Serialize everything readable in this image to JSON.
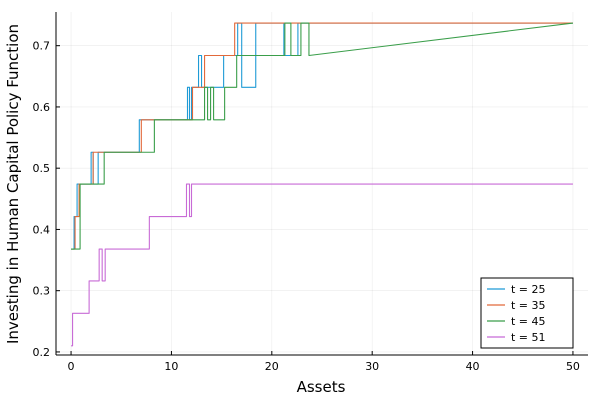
{
  "chart_data": {
    "type": "line",
    "title": "",
    "xlabel": "Assets",
    "ylabel": "Investing in Human Capital Policy Function",
    "xlim": [
      -1.5,
      51.5
    ],
    "ylim": [
      0.195,
      0.755
    ],
    "xticks": [
      0,
      10,
      20,
      30,
      40,
      50
    ],
    "xtick_labels": [
      "0",
      "10",
      "20",
      "30",
      "40",
      "50"
    ],
    "yticks": [
      0.2,
      0.3,
      0.4,
      0.5,
      0.6,
      0.7
    ],
    "ytick_labels": [
      "0.2",
      "0.3",
      "0.4",
      "0.5",
      "0.6",
      "0.7"
    ],
    "grid": true,
    "legend_position": "bottom-right",
    "series": [
      {
        "name": "t = 25",
        "color": "#1f9bd6",
        "x": [
          0,
          0.3,
          0.3,
          0.6,
          0.6,
          2.0,
          2.0,
          2.2,
          2.2,
          2.7,
          2.7,
          6.8,
          6.8,
          7.0,
          7.0,
          11.6,
          11.6,
          11.8,
          11.8,
          12.0,
          12.0,
          12.7,
          12.7,
          13.0,
          13.0,
          15.2,
          15.2,
          16.6,
          16.6,
          17.0,
          17.0,
          18.4,
          18.4,
          21.2,
          21.2,
          22.6,
          22.6,
          50
        ],
        "y": [
          0.368,
          0.368,
          0.421,
          0.421,
          0.474,
          0.474,
          0.526,
          0.526,
          0.474,
          0.474,
          0.526,
          0.526,
          0.579,
          0.579,
          0.579,
          0.579,
          0.632,
          0.632,
          0.579,
          0.579,
          0.632,
          0.632,
          0.684,
          0.684,
          0.632,
          0.632,
          0.684,
          0.684,
          0.737,
          0.737,
          0.632,
          0.632,
          0.737,
          0.737,
          0.684,
          0.684,
          0.737,
          0.737
        ]
      },
      {
        "name": "t = 35",
        "color": "#e2693a",
        "x": [
          0,
          0.4,
          0.4,
          0.8,
          0.8,
          2.2,
          2.2,
          7.0,
          7.0,
          12.1,
          12.1,
          13.3,
          13.3,
          14.7,
          14.7,
          16.3,
          16.3,
          50
        ],
        "y": [
          0.368,
          0.368,
          0.421,
          0.421,
          0.474,
          0.474,
          0.526,
          0.526,
          0.579,
          0.579,
          0.632,
          0.632,
          0.684,
          0.684,
          0.684,
          0.684,
          0.737,
          0.737
        ]
      },
      {
        "name": "t = 45",
        "color": "#3a9e4a",
        "x": [
          0,
          0.9,
          0.9,
          2.5,
          2.5,
          3.3,
          3.3,
          8.3,
          8.3,
          13.3,
          13.3,
          13.6,
          13.6,
          13.9,
          13.9,
          14.2,
          14.2,
          15.3,
          15.3,
          16.5,
          16.5,
          21.3,
          21.3,
          21.9,
          21.9,
          22.9,
          22.9,
          23.7,
          23.7,
          50
        ],
        "y": [
          0.368,
          0.368,
          0.474,
          0.474,
          0.474,
          0.474,
          0.526,
          0.526,
          0.579,
          0.579,
          0.632,
          0.632,
          0.579,
          0.579,
          0.632,
          0.632,
          0.579,
          0.579,
          0.632,
          0.632,
          0.684,
          0.684,
          0.737,
          0.737,
          0.684,
          0.684,
          0.737,
          0.737,
          0.684,
          0.737
        ]
      },
      {
        "name": "t = 51",
        "color": "#c86bd6",
        "x": [
          0,
          0.15,
          0.15,
          1.8,
          1.8,
          2.0,
          2.0,
          2.8,
          2.8,
          3.1,
          3.1,
          3.4,
          3.4,
          7.8,
          7.8,
          11.5,
          11.5,
          11.8,
          11.8,
          12.0,
          12.0,
          50
        ],
        "y": [
          0.21,
          0.21,
          0.263,
          0.263,
          0.316,
          0.316,
          0.316,
          0.316,
          0.368,
          0.368,
          0.316,
          0.316,
          0.368,
          0.368,
          0.421,
          0.421,
          0.474,
          0.474,
          0.421,
          0.421,
          0.474,
          0.474
        ]
      }
    ]
  }
}
